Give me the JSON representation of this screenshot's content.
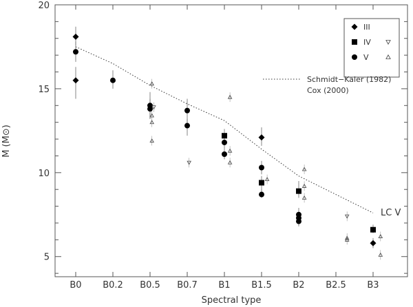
{
  "chart_data": {
    "type": "scatter",
    "title": "",
    "xlabel": "Spectral type",
    "ylabel": "M (M⊙)",
    "categories": [
      "B0",
      "B0.2",
      "B0.5",
      "B0.7",
      "B1",
      "B1.5",
      "B2",
      "B2.5",
      "B3"
    ],
    "ylim": [
      3.8,
      20
    ],
    "yticks": [
      5,
      10,
      15,
      20
    ],
    "grid": false,
    "legend_position": "top-right",
    "annotation": "LC V",
    "series": [
      {
        "name": "III",
        "marker": "diamond",
        "points": [
          {
            "x": 0,
            "y": 18.1,
            "err": [
              17.6,
              18.7
            ]
          },
          {
            "x": 0,
            "y": 15.5,
            "err": [
              14.4,
              16.3
            ]
          },
          {
            "x": 5,
            "y": 12.1,
            "err": [
              11.6,
              12.7
            ]
          },
          {
            "x": 8,
            "y": 5.8,
            "err": [
              5.5,
              6.1
            ]
          }
        ]
      },
      {
        "name": "IV",
        "marker": "square",
        "points": [
          {
            "x": 4,
            "y": 12.2,
            "err": [
              11.8,
              12.6
            ]
          },
          {
            "x": 5,
            "y": 9.4,
            "err": [
              8.9,
              9.8
            ]
          },
          {
            "x": 6,
            "y": 8.9,
            "err": [
              8.5,
              9.5
            ]
          },
          {
            "x": 8,
            "y": 6.6,
            "err": [
              6.4,
              6.9
            ]
          }
        ]
      },
      {
        "name": "V",
        "marker": "circle",
        "points": [
          {
            "x": 0,
            "y": 17.2,
            "err": [
              16.6,
              17.8
            ]
          },
          {
            "x": 1,
            "y": 15.5,
            "err": [
              15.0,
              16.1
            ]
          },
          {
            "x": 2,
            "y": 14.0,
            "err": [
              13.2,
              14.8
            ]
          },
          {
            "x": 2,
            "y": 13.8,
            "err": [
              13.2,
              14.4
            ]
          },
          {
            "x": 3,
            "y": 13.7,
            "err": [
              13.0,
              14.4
            ]
          },
          {
            "x": 3,
            "y": 12.8,
            "err": [
              12.2,
              13.2
            ]
          },
          {
            "x": 4,
            "y": 11.8,
            "err": [
              11.4,
              12.2
            ]
          },
          {
            "x": 4,
            "y": 11.1,
            "err": [
              10.8,
              11.4
            ]
          },
          {
            "x": 5,
            "y": 10.3,
            "err": [
              9.9,
              10.7
            ]
          },
          {
            "x": 5,
            "y": 8.7,
            "err": [
              8.5,
              9.0
            ]
          },
          {
            "x": 6,
            "y": 7.5,
            "err": [
              7.2,
              7.9
            ]
          },
          {
            "x": 6,
            "y": 7.3,
            "err": [
              7.0,
              7.6
            ]
          },
          {
            "x": 6,
            "y": 7.1,
            "err": [
              6.8,
              7.4
            ]
          }
        ]
      },
      {
        "name": "Cox (2000) IV",
        "marker": "triangle-down",
        "points": [
          {
            "x": 2.1,
            "y": 13.9
          },
          {
            "x": 3.05,
            "y": 10.6
          },
          {
            "x": 7.3,
            "y": 7.4
          }
        ]
      },
      {
        "name": "Cox (2000) V",
        "marker": "triangle-up",
        "points": [
          {
            "x": 2.05,
            "y": 15.3
          },
          {
            "x": 2.05,
            "y": 13.4
          },
          {
            "x": 2.05,
            "y": 13.0
          },
          {
            "x": 2.05,
            "y": 11.9
          },
          {
            "x": 4.15,
            "y": 14.5
          },
          {
            "x": 4.15,
            "y": 11.3
          },
          {
            "x": 4.15,
            "y": 10.6
          },
          {
            "x": 5.15,
            "y": 9.6
          },
          {
            "x": 6.15,
            "y": 10.2
          },
          {
            "x": 6.15,
            "y": 9.2
          },
          {
            "x": 6.15,
            "y": 8.5
          },
          {
            "x": 7.3,
            "y": 6.1
          },
          {
            "x": 7.3,
            "y": 6.0
          },
          {
            "x": 8.2,
            "y": 6.2
          },
          {
            "x": 8.2,
            "y": 5.1
          }
        ]
      },
      {
        "name": "Schmidt−Kaler (1982)",
        "style": "dotted-line",
        "x": [
          0,
          1,
          2,
          3,
          4,
          5,
          6,
          7,
          8
        ],
        "values": [
          17.5,
          16.5,
          15.2,
          14.1,
          13.1,
          11.4,
          9.8,
          8.7,
          7.6
        ]
      }
    ],
    "legend": {
      "III": "III",
      "IV": "IV",
      "V": "V",
      "schmidt": "Schmidt−Kaler (1982)",
      "cox": "Cox (2000)"
    },
    "colors": {
      "ink": "#000000",
      "text": "#333333",
      "axis": "#555555",
      "errorbar": "#666666"
    }
  }
}
